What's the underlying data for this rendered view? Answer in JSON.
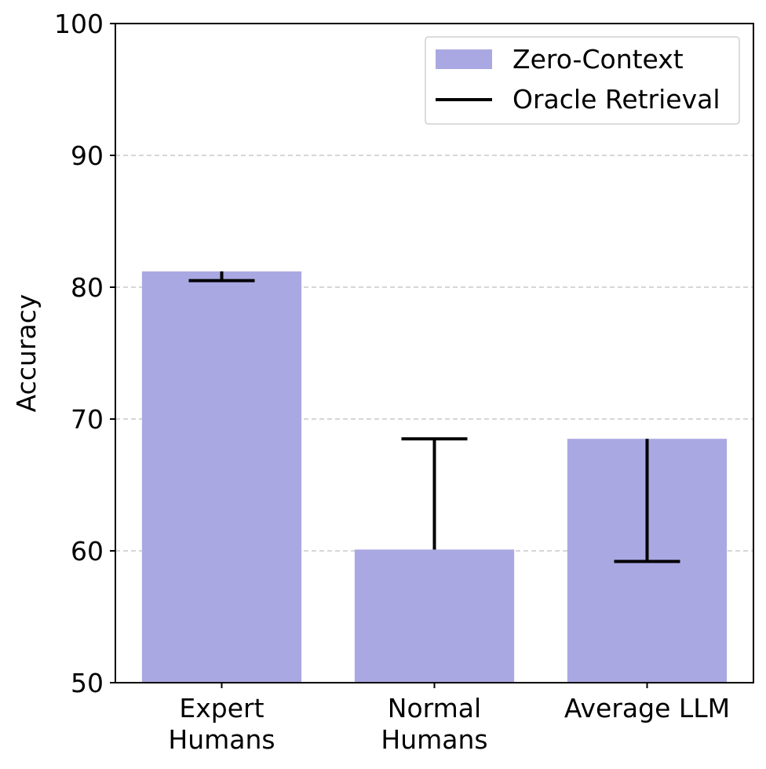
{
  "colors": {
    "bar": "#aaa8e2",
    "range_line": "#000000",
    "grid": "#c8c8c8",
    "axis": "#000000",
    "legend_border": "#d0d0d0"
  },
  "chart_data": {
    "type": "bar",
    "categories": [
      [
        "Expert",
        "Humans"
      ],
      [
        "Normal",
        "Humans"
      ],
      [
        "Average LLM"
      ]
    ],
    "series": [
      {
        "name": "Zero-Context",
        "values": [
          81.2,
          60.1,
          68.5
        ]
      },
      {
        "name": "Oracle Retrieval",
        "values": [
          80.5,
          68.5,
          59.2
        ]
      }
    ],
    "title": "",
    "xlabel": "",
    "ylabel": "Accuracy",
    "ylim": [
      50,
      100
    ],
    "yticks": [
      50,
      60,
      70,
      80,
      90,
      100
    ],
    "grid": "y-dashed",
    "legend_position": "top-right"
  }
}
